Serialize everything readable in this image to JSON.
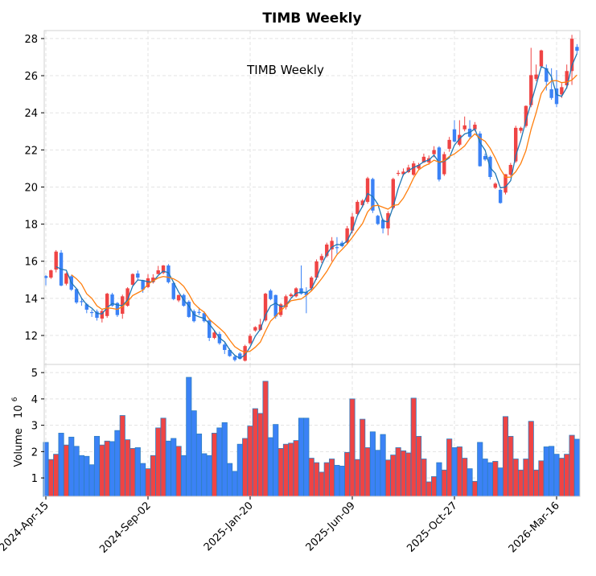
{
  "chart_data": {
    "type": "candlestick",
    "title": "TIMB  Weekly",
    "inner_title": "TIMB  Weekly",
    "ylabel_volume": "Volume",
    "ylabel_volume_exp": "6",
    "ylabel_volume_base": "10",
    "price_ylim": [
      10.44,
      28.43
    ],
    "volume_ylim": [
      0.3,
      5.31
    ],
    "price_ticks": [
      12,
      14,
      16,
      18,
      20,
      22,
      24,
      26,
      28
    ],
    "volume_ticks": [
      1,
      2,
      3,
      4,
      5
    ],
    "x_ticks": [
      {
        "index": 0,
        "label": "2024-Apr-15"
      },
      {
        "index": 20,
        "label": "2024-Sep-02"
      },
      {
        "index": 40,
        "label": "2025-Jan-20"
      },
      {
        "index": 60,
        "label": "2025-Jun-09"
      },
      {
        "index": 80,
        "label": "2025-Oct-27"
      },
      {
        "index": 100,
        "label": "2026-Mar-16"
      }
    ],
    "moving_averages": [
      3,
      6
    ],
    "grid": true,
    "colors": {
      "up": "#ef4444",
      "down": "#3b82f6",
      "edge": "#2f7fc1",
      "ma1": "#1f77b4",
      "ma2": "#ff7f0e",
      "grid": "#e3e3e3"
    },
    "ohlc": [
      [
        15.2,
        15.25,
        14.7,
        15.1
      ],
      [
        15.12,
        15.55,
        15.05,
        15.51
      ],
      [
        15.55,
        16.6,
        15.4,
        16.52
      ],
      [
        16.46,
        16.6,
        14.65,
        14.69
      ],
      [
        14.79,
        15.4,
        14.7,
        15.34
      ],
      [
        15.19,
        15.25,
        14.4,
        14.47
      ],
      [
        14.5,
        14.55,
        13.7,
        13.78
      ],
      [
        13.85,
        14.0,
        13.6,
        13.8
      ],
      [
        13.68,
        13.75,
        13.2,
        13.39
      ],
      [
        13.26,
        13.4,
        13.0,
        13.22
      ],
      [
        13.29,
        13.4,
        12.8,
        12.95
      ],
      [
        12.91,
        13.4,
        12.7,
        13.32
      ],
      [
        13.05,
        14.3,
        12.95,
        14.25
      ],
      [
        14.21,
        14.3,
        13.55,
        13.6
      ],
      [
        13.75,
        13.8,
        13.0,
        13.1
      ],
      [
        13.17,
        14.2,
        12.9,
        14.11
      ],
      [
        13.6,
        14.6,
        13.55,
        14.54
      ],
      [
        14.73,
        15.35,
        14.7,
        15.31
      ],
      [
        15.34,
        15.5,
        15.0,
        15.12
      ],
      [
        14.98,
        15.0,
        14.3,
        14.47
      ],
      [
        14.61,
        15.3,
        14.55,
        15.08
      ],
      [
        14.87,
        15.3,
        14.8,
        15.12
      ],
      [
        15.31,
        15.75,
        15.3,
        15.51
      ],
      [
        15.37,
        15.8,
        15.3,
        15.77
      ],
      [
        15.77,
        15.85,
        14.8,
        14.87
      ],
      [
        14.83,
        14.9,
        13.9,
        13.96
      ],
      [
        13.89,
        14.2,
        13.8,
        14.18
      ],
      [
        14.18,
        14.25,
        13.55,
        13.6
      ],
      [
        13.82,
        13.9,
        12.95,
        13.0
      ],
      [
        13.31,
        13.4,
        12.7,
        12.77
      ],
      [
        13.27,
        13.5,
        13.1,
        13.23
      ],
      [
        13.2,
        13.3,
        12.7,
        12.77
      ],
      [
        12.81,
        12.9,
        11.7,
        11.87
      ],
      [
        11.87,
        12.3,
        11.8,
        12.16
      ],
      [
        12.08,
        12.2,
        11.5,
        11.58
      ],
      [
        11.51,
        11.6,
        11.0,
        11.22
      ],
      [
        11.22,
        11.3,
        10.85,
        10.89
      ],
      [
        10.86,
        10.95,
        10.6,
        10.68
      ],
      [
        11.03,
        11.1,
        10.7,
        10.74
      ],
      [
        10.64,
        11.5,
        10.6,
        11.43
      ],
      [
        11.58,
        12.1,
        11.5,
        11.98
      ],
      [
        12.27,
        12.5,
        12.2,
        12.45
      ],
      [
        12.3,
        12.9,
        12.25,
        12.59
      ],
      [
        12.81,
        14.3,
        12.75,
        14.25
      ],
      [
        14.42,
        14.5,
        13.9,
        13.96
      ],
      [
        14.18,
        14.2,
        12.9,
        13.02
      ],
      [
        13.1,
        13.75,
        13.0,
        13.68
      ],
      [
        13.53,
        14.2,
        13.4,
        14.11
      ],
      [
        14.12,
        14.3,
        14.05,
        14.21
      ],
      [
        14.11,
        14.6,
        14.05,
        14.54
      ],
      [
        14.54,
        15.77,
        14.2,
        14.25
      ],
      [
        14.33,
        14.6,
        13.2,
        14.18
      ],
      [
        14.54,
        15.2,
        14.4,
        15.12
      ],
      [
        15.12,
        16.1,
        15.0,
        15.99
      ],
      [
        16.06,
        16.4,
        15.9,
        16.28
      ],
      [
        16.28,
        17.0,
        16.2,
        16.9
      ],
      [
        16.64,
        17.3,
        16.0,
        17.1
      ],
      [
        16.76,
        17.3,
        16.4,
        16.72
      ],
      [
        17.0,
        17.1,
        16.75,
        16.81
      ],
      [
        17.0,
        17.9,
        16.9,
        17.77
      ],
      [
        17.65,
        18.6,
        17.5,
        18.4
      ],
      [
        18.55,
        19.3,
        18.5,
        19.2
      ],
      [
        19.02,
        19.35,
        18.9,
        19.27
      ],
      [
        19.2,
        20.55,
        19.1,
        20.47
      ],
      [
        20.43,
        20.5,
        18.6,
        18.73
      ],
      [
        18.45,
        18.5,
        17.95,
        18.01
      ],
      [
        18.23,
        18.3,
        17.5,
        17.77
      ],
      [
        17.77,
        18.7,
        17.4,
        18.59
      ],
      [
        18.88,
        20.5,
        18.8,
        20.43
      ],
      [
        20.72,
        20.9,
        20.6,
        20.76
      ],
      [
        20.69,
        21.0,
        20.6,
        20.83
      ],
      [
        20.8,
        21.2,
        20.75,
        21.05
      ],
      [
        20.66,
        21.4,
        20.6,
        21.27
      ],
      [
        21.0,
        21.3,
        20.9,
        21.19
      ],
      [
        21.33,
        21.8,
        21.3,
        21.63
      ],
      [
        21.33,
        21.7,
        21.2,
        21.55
      ],
      [
        21.77,
        22.2,
        21.6,
        21.99
      ],
      [
        22.13,
        22.2,
        20.3,
        20.4
      ],
      [
        20.69,
        21.9,
        20.6,
        21.77
      ],
      [
        22.06,
        22.7,
        21.9,
        22.54
      ],
      [
        23.11,
        23.6,
        22.4,
        22.45
      ],
      [
        22.28,
        23.6,
        22.2,
        22.81
      ],
      [
        23.11,
        23.8,
        23.0,
        23.32
      ],
      [
        23.14,
        23.6,
        22.6,
        22.71
      ],
      [
        23.11,
        23.5,
        23.0,
        23.36
      ],
      [
        22.88,
        23.0,
        21.1,
        21.12
      ],
      [
        21.67,
        21.8,
        21.4,
        21.48
      ],
      [
        21.63,
        21.7,
        20.4,
        20.54
      ],
      [
        19.96,
        20.25,
        19.9,
        20.18
      ],
      [
        19.85,
        19.9,
        19.1,
        19.14
      ],
      [
        19.7,
        20.7,
        19.6,
        20.69
      ],
      [
        20.66,
        21.3,
        20.6,
        21.19
      ],
      [
        21.38,
        23.3,
        21.3,
        23.19
      ],
      [
        23.03,
        23.25,
        22.9,
        23.19
      ],
      [
        23.29,
        24.4,
        23.2,
        24.37
      ],
      [
        24.41,
        27.5,
        24.3,
        26.03
      ],
      [
        25.82,
        26.6,
        25.7,
        26.06
      ],
      [
        26.5,
        27.4,
        26.4,
        27.36
      ],
      [
        26.4,
        26.6,
        25.2,
        25.67
      ],
      [
        25.27,
        26.4,
        24.7,
        24.8
      ],
      [
        25.31,
        26.3,
        24.3,
        24.47
      ],
      [
        24.99,
        25.6,
        24.8,
        25.38
      ],
      [
        25.48,
        26.6,
        25.3,
        26.25
      ],
      [
        26.25,
        28.2,
        25.5,
        27.99
      ],
      [
        27.55,
        27.7,
        27.2,
        27.34
      ]
    ],
    "volume_millions": [
      2.35,
      1.7,
      1.9,
      2.7,
      2.25,
      2.55,
      2.2,
      1.85,
      1.82,
      1.5,
      2.58,
      2.25,
      2.4,
      2.38,
      2.8,
      3.37,
      2.45,
      2.12,
      2.15,
      1.55,
      1.35,
      1.85,
      2.9,
      3.27,
      2.4,
      2.5,
      2.2,
      1.85,
      4.82,
      3.55,
      2.67,
      1.92,
      1.85,
      2.7,
      2.9,
      3.1,
      1.55,
      1.25,
      2.28,
      2.5,
      2.97,
      3.63,
      3.45,
      4.67,
      2.53,
      3.03,
      2.12,
      2.28,
      2.32,
      2.42,
      3.27,
      3.27,
      1.75,
      1.58,
      1.22,
      1.58,
      1.72,
      1.48,
      1.45,
      1.97,
      4.0,
      1.7,
      3.23,
      2.15,
      2.75,
      2.05,
      2.65,
      1.68,
      1.87,
      2.15,
      2.03,
      1.95,
      4.03,
      2.58,
      1.72,
      0.85,
      1.05,
      1.58,
      1.3,
      2.48,
      2.15,
      2.18,
      1.75,
      1.35,
      0.87,
      2.35,
      1.72,
      1.58,
      1.63,
      1.38,
      3.33,
      2.58,
      1.72,
      1.3,
      1.72,
      3.15,
      1.3,
      1.65,
      2.18,
      2.2,
      1.9,
      1.75,
      1.9,
      2.62,
      2.47
    ]
  }
}
